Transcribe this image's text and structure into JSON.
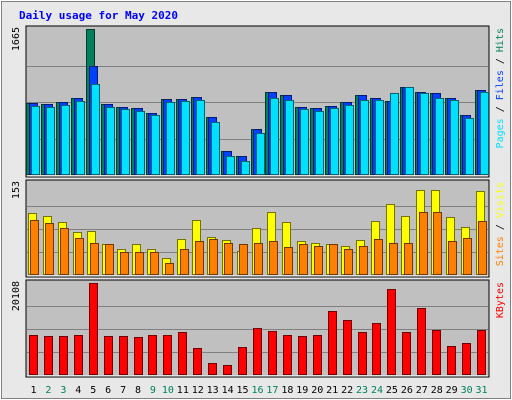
{
  "chart_data": {
    "type": "bar",
    "title": "Daily usage for May 2020",
    "colors": {
      "hits": "#00805c",
      "files": "#0040ff",
      "pages": "#00e0ff",
      "visits": "#ffff00",
      "sites": "#ff8000",
      "kbytes": "#ff0000",
      "title": "#0000ff",
      "weekend": "#00805c",
      "weekday": "#000000",
      "plot_bg": "#c0c0c0",
      "frame_bg": "#e8e8e8"
    },
    "days": [
      "1",
      "2",
      "3",
      "4",
      "5",
      "6",
      "7",
      "8",
      "9",
      "10",
      "11",
      "12",
      "13",
      "14",
      "15",
      "16",
      "17",
      "18",
      "19",
      "20",
      "21",
      "22",
      "23",
      "24",
      "25",
      "26",
      "27",
      "28",
      "29",
      "30",
      "31"
    ],
    "weekend_days": [
      "2",
      "3",
      "9",
      "10",
      "16",
      "17",
      "23",
      "24",
      "30",
      "31"
    ],
    "panels": [
      {
        "id": "top",
        "ymax_label": "1665",
        "ymax": 1665,
        "right_label_parts": [
          {
            "text": "Pages",
            "color_key": "pages"
          },
          {
            "text": " / ",
            "color_key": "weekday"
          },
          {
            "text": "Files",
            "color_key": "files"
          },
          {
            "text": " / ",
            "color_key": "weekday"
          },
          {
            "text": "Hits",
            "color_key": "hits"
          }
        ],
        "series": [
          {
            "name": "Hits",
            "color_key": "hits",
            "values": [
              820,
              810,
              830,
              880,
              1665,
              810,
              780,
              760,
              710,
              870,
              870,
              890,
              660,
              270,
              220,
              520,
              950,
              910,
              780,
              760,
              790,
              830,
              910,
              880,
              840,
              1000,
              950,
              930,
              880,
              680,
              970
            ]
          },
          {
            "name": "Files",
            "color_key": "files",
            "values": [
              820,
              810,
              830,
              880,
              1240,
              810,
              780,
              760,
              710,
              870,
              870,
              890,
              660,
              270,
              220,
              520,
              950,
              910,
              780,
              760,
              790,
              830,
              910,
              880,
              840,
              1000,
              950,
              930,
              880,
              680,
              970
            ]
          },
          {
            "name": "Pages",
            "color_key": "pages",
            "values": [
              790,
              780,
              800,
              840,
              1040,
              780,
              750,
              730,
              680,
              830,
              840,
              860,
              600,
              220,
              160,
              480,
              880,
              860,
              750,
              730,
              760,
              800,
              860,
              860,
              930,
              1000,
              930,
              880,
              850,
              650,
              950
            ]
          }
        ]
      },
      {
        "id": "middle",
        "ymax_label": "153",
        "ymax": 153,
        "right_label_parts": [
          {
            "text": "Sites",
            "color_key": "sites"
          },
          {
            "text": " / ",
            "color_key": "weekday"
          },
          {
            "text": "Visits",
            "color_key": "visits"
          }
        ],
        "series": [
          {
            "name": "Visits",
            "color_key": "visits",
            "values": [
              103,
              98,
              88,
              72,
              74,
              51,
              44,
              51,
              43,
              28,
              60,
              91,
              63,
              58,
              40,
              78,
              104,
              88,
              56,
              53,
              51,
              49,
              59,
              90,
              118,
              98,
              141,
              141,
              96,
              79,
              140
            ]
          },
          {
            "name": "Sites",
            "color_key": "sites",
            "values": [
              92,
              87,
              78,
              62,
              54,
              51,
              38,
              39,
              38,
              20,
              43,
              57,
              60,
              54,
              52,
              53,
              57,
              47,
              52,
              48,
              52,
              44,
              48,
              60,
              53,
              53,
              104,
              104,
              56,
              61,
              90
            ]
          }
        ]
      },
      {
        "id": "bottom",
        "ymax_label": "20108",
        "ymax": 20108,
        "right_label_parts": [
          {
            "text": "KBytes",
            "color_key": "kbytes"
          }
        ],
        "series": [
          {
            "name": "KBytes",
            "color_key": "kbytes",
            "values": [
              8700,
              8500,
              8600,
              8700,
              20108,
              8600,
              8600,
              8200,
              8800,
              8700,
              9500,
              5800,
              2700,
              2200,
              6100,
              10200,
              9700,
              8700,
              8500,
              8700,
              14000,
              12000,
              9500,
              11400,
              18900,
              9400,
              14700,
              9800,
              6400,
              7000,
              9800
            ]
          }
        ]
      }
    ]
  }
}
